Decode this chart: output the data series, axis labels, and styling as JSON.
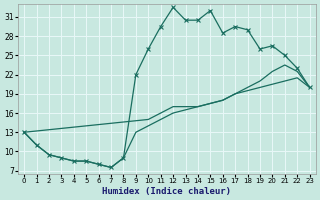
{
  "xlabel": "Humidex (Indice chaleur)",
  "bg_color": "#c8e8e0",
  "grid_color": "#e8f8f8",
  "line_color": "#1a6e60",
  "xlim": [
    -0.5,
    23.5
  ],
  "ylim": [
    6.5,
    33.0
  ],
  "xticks": [
    0,
    1,
    2,
    3,
    4,
    5,
    6,
    7,
    8,
    9,
    10,
    11,
    12,
    13,
    14,
    15,
    16,
    17,
    18,
    19,
    20,
    21,
    22,
    23
  ],
  "yticks": [
    7,
    10,
    13,
    16,
    19,
    22,
    25,
    28,
    31
  ],
  "curve_x": [
    0,
    1,
    2,
    3,
    4,
    5,
    6,
    7,
    8,
    9,
    10,
    11,
    12,
    13,
    14,
    15,
    16,
    17,
    18,
    19,
    20,
    21,
    22,
    23
  ],
  "curve_y": [
    13,
    11,
    9.5,
    9,
    8.5,
    8.5,
    8,
    7.5,
    9,
    22,
    26,
    29.5,
    32.5,
    30.5,
    30.5,
    32,
    28.5,
    29.5,
    29,
    26,
    26.5,
    25,
    23,
    20
  ],
  "line_diag_x": [
    0,
    10,
    11,
    12,
    13,
    14,
    15,
    16,
    17,
    18,
    19,
    20,
    21,
    22,
    23
  ],
  "line_diag_y": [
    13,
    15,
    16,
    17,
    17,
    17,
    17.5,
    18,
    19,
    20,
    21,
    22.5,
    23.5,
    22.5,
    20
  ],
  "line_low_x": [
    0,
    1,
    2,
    3,
    4,
    5,
    6,
    7,
    8,
    9,
    10,
    11,
    12,
    13,
    14,
    15,
    16,
    17,
    18,
    19,
    20,
    21,
    22,
    23
  ],
  "line_low_y": [
    13,
    11,
    9.5,
    9,
    8.5,
    8.5,
    8,
    7.5,
    9,
    13,
    14,
    15,
    16,
    16.5,
    17,
    17.5,
    18,
    19,
    19.5,
    20,
    20.5,
    21,
    21.5,
    20
  ]
}
